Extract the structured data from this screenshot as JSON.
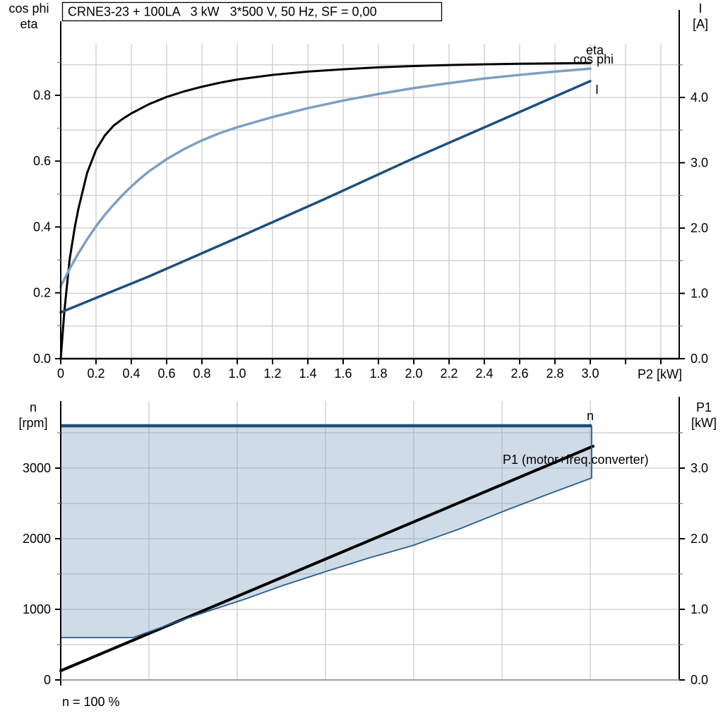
{
  "title_box": "CRNE3-23 + 100LA   3 kW   3*500 V, 50 Hz, SF = 0,00",
  "colors": {
    "black": "#000000",
    "steel_blue": "#7e9fc1",
    "navy": "#1d4f7f",
    "region_fill": "rgba(118,152,184,0.35)",
    "region_edge": "#2a5d8f",
    "grid": "#cccccc",
    "minor_tick": "#8c8c8c",
    "bottom_axis_gray": "#9aa0a6"
  },
  "chart_data": [
    {
      "type": "line",
      "title": "CRNE3-23 + 100LA   3 kW   3*500 V, 50 Hz, SF = 0,00",
      "x_label": "P2 [kW]",
      "y_left_label_1": "cos phi",
      "y_left_label_2": "eta",
      "y_right_label_1": "I",
      "y_right_label_2": "[A]",
      "x_range": [
        0,
        3.504
      ],
      "y_left_range": [
        0,
        0.9565
      ],
      "y_right_range": [
        0,
        4.822
      ],
      "x_ticks": [
        [
          "0",
          0
        ],
        [
          "0.2",
          0.2
        ],
        [
          "0.4",
          0.4
        ],
        [
          "0.6",
          0.6
        ],
        [
          "0.8",
          0.8
        ],
        [
          "1.0",
          1.0
        ],
        [
          "1.2",
          1.2
        ],
        [
          "1.4",
          1.4
        ],
        [
          "1.6",
          1.6
        ],
        [
          "1.8",
          1.8
        ],
        [
          "2.0",
          2.0
        ],
        [
          "2.2",
          2.2
        ],
        [
          "2.4",
          2.4
        ],
        [
          "2.6",
          2.6
        ],
        [
          "2.8",
          2.8
        ],
        [
          "3.0",
          3.0
        ]
      ],
      "x_ticks_unlabeled": [
        3.2,
        3.4
      ],
      "y_left_ticks": [
        [
          "0.0",
          0
        ],
        [
          "0.2",
          0.2
        ],
        [
          "0.4",
          0.4
        ],
        [
          "0.6",
          0.6
        ],
        [
          "0.8",
          0.8
        ]
      ],
      "y_left_minor_step": 0.1,
      "y_right_ticks": [
        [
          "0.0",
          0
        ],
        [
          "1.0",
          1
        ],
        [
          "2.0",
          2
        ],
        [
          "3.0",
          3
        ],
        [
          "4.0",
          4
        ]
      ],
      "y_right_minor_step": 0.5,
      "grid_h_step_right": 0.5,
      "series": [
        {
          "name": "eta",
          "label": "eta",
          "axis": "left",
          "color": "#000000",
          "width": 3,
          "x": [
            0,
            0.02,
            0.05,
            0.08,
            0.1,
            0.15,
            0.2,
            0.25,
            0.3,
            0.35,
            0.4,
            0.5,
            0.6,
            0.7,
            0.8,
            0.9,
            1.0,
            1.2,
            1.4,
            1.6,
            1.8,
            2.0,
            2.2,
            2.4,
            2.6,
            2.8,
            3.0
          ],
          "y": [
            0,
            0.14,
            0.3,
            0.4,
            0.455,
            0.565,
            0.634,
            0.678,
            0.708,
            0.728,
            0.745,
            0.773,
            0.795,
            0.812,
            0.826,
            0.838,
            0.848,
            0.862,
            0.872,
            0.879,
            0.885,
            0.889,
            0.892,
            0.894,
            0.896,
            0.897,
            0.898
          ]
        },
        {
          "name": "cos-phi",
          "label": "cos phi",
          "axis": "left",
          "color": "#7e9fc1",
          "width": 3.5,
          "x": [
            0,
            0.05,
            0.1,
            0.15,
            0.2,
            0.25,
            0.3,
            0.35,
            0.4,
            0.45,
            0.5,
            0.6,
            0.7,
            0.8,
            0.9,
            1.0,
            1.2,
            1.4,
            1.6,
            1.8,
            2.0,
            2.2,
            2.4,
            2.6,
            2.8,
            3.0
          ],
          "y": [
            0.22,
            0.272,
            0.32,
            0.363,
            0.402,
            0.437,
            0.468,
            0.497,
            0.523,
            0.547,
            0.569,
            0.606,
            0.637,
            0.663,
            0.685,
            0.703,
            0.734,
            0.761,
            0.784,
            0.804,
            0.822,
            0.837,
            0.851,
            0.862,
            0.872,
            0.881
          ]
        },
        {
          "name": "current",
          "label": "I",
          "axis": "right",
          "color": "#1d4f7f",
          "width": 3.5,
          "x": [
            0,
            0.5,
            1.0,
            1.5,
            2.0,
            2.5,
            3.0
          ],
          "y": [
            0.71,
            1.26,
            1.85,
            2.45,
            3.07,
            3.66,
            4.25
          ]
        }
      ]
    },
    {
      "type": "line",
      "x_label": "",
      "y_left_label_1": "n",
      "y_left_label_2": "[rpm]",
      "y_right_label_1": "P1",
      "y_right_label_2": "[kW]",
      "annotation": "n = 100 %",
      "x_range": [
        0,
        3.504
      ],
      "y_left_range": [
        0,
        3950
      ],
      "y_right_range": [
        0,
        3.95
      ],
      "y_left_ticks": [
        [
          "0",
          0
        ],
        [
          "1000",
          1
        ],
        [
          "2000",
          2
        ],
        [
          "3000",
          3
        ]
      ],
      "y_left_minor_step": 0.5,
      "y_right_ticks": [
        [
          "0.0",
          0
        ],
        [
          "1.0",
          1
        ],
        [
          "2.0",
          2
        ],
        [
          "3.0",
          3
        ]
      ],
      "y_right_minor_step": 0.5,
      "grid_v_step": 0.5,
      "grid_h_step": 0.5,
      "region": {
        "fill": "rgba(118,152,184,0.35)",
        "edge": "#2a5d8f",
        "top_value": 3.6,
        "boundary_x": [
          0,
          0.41,
          0.62,
          0.83,
          1.05,
          1.25,
          1.52,
          1.75,
          1.99,
          2.25,
          2.52,
          2.76,
          3.008
        ],
        "boundary_y": [
          0.6,
          0.6,
          0.79,
          0.97,
          1.15,
          1.33,
          1.55,
          1.73,
          1.9,
          2.13,
          2.4,
          2.63,
          2.86
        ]
      },
      "series": [
        {
          "name": "p1-total",
          "label": "P1 (motor+freq.converter)",
          "axis": "right",
          "color": "#000000",
          "width": 4,
          "x": [
            0,
            3.016
          ],
          "y": [
            0.13,
            3.31
          ]
        },
        {
          "name": "speed-n",
          "label": "n",
          "axis": "right",
          "color": "#1d4f7f",
          "width": 4.5,
          "x": [
            0,
            3.008
          ],
          "y": [
            3.6,
            3.6
          ]
        }
      ]
    }
  ]
}
